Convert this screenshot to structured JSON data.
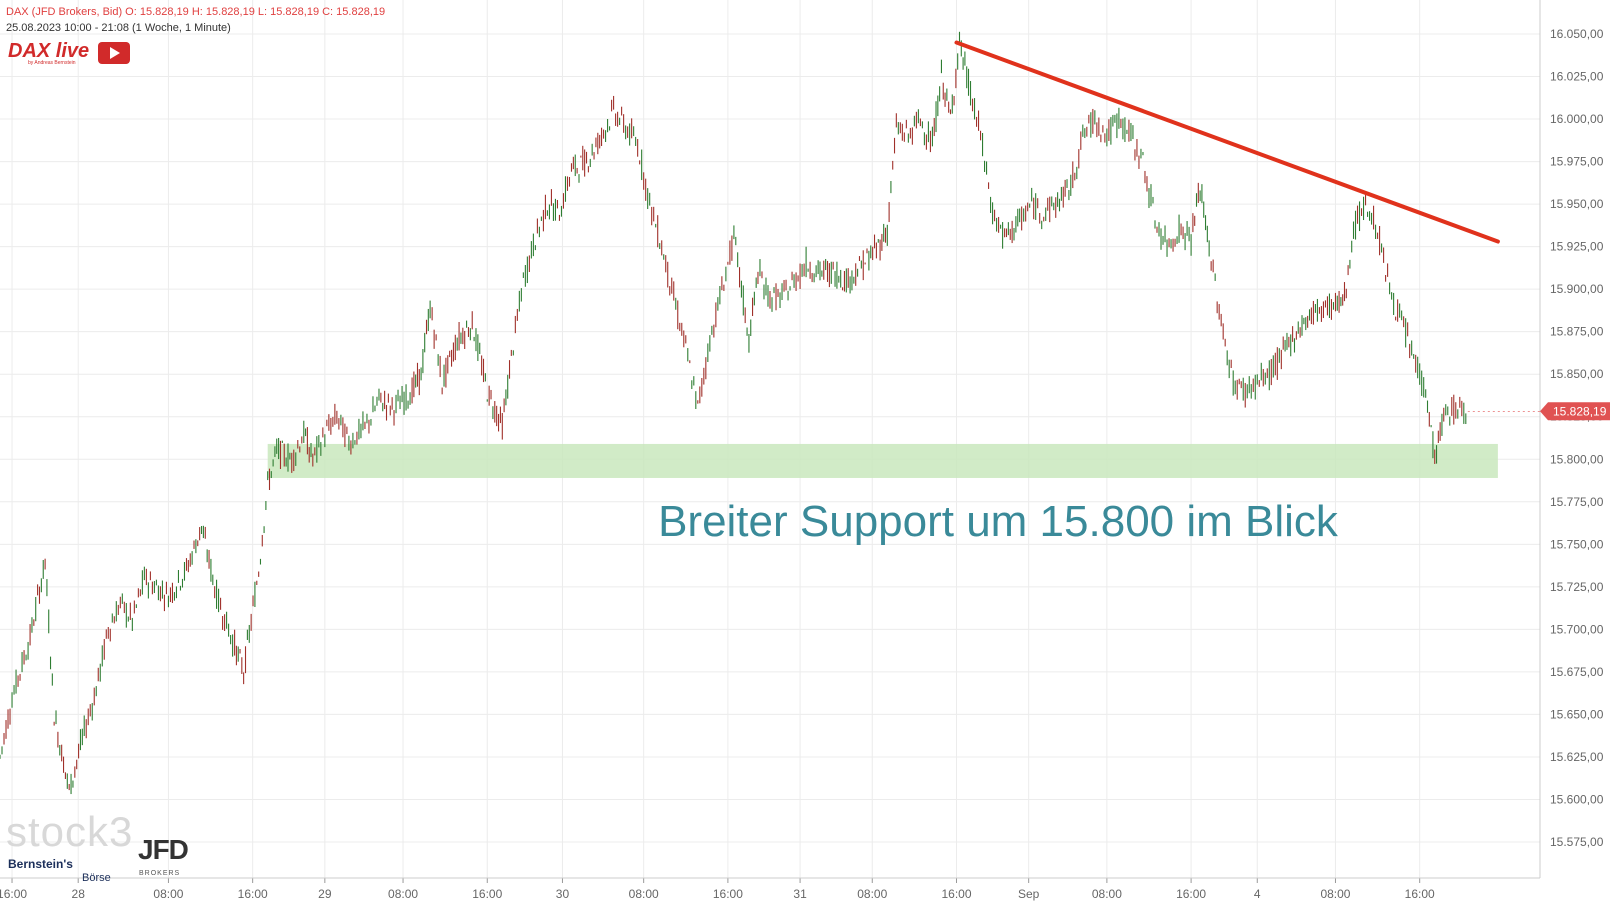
{
  "header": {
    "line1": "DAX (JFD Brokers, Bid)  O: 15.828,19  H: 15.828,19  L: 15.828,19  C: 15.828,19",
    "line2": "25.08.2023 10:00 - 21:08   (1 Woche, 1 Minute)"
  },
  "logos": {
    "dax_live": "DAX live",
    "dax_sub": "by Andreas Bernstein",
    "stock3": "stock3",
    "bernsteins": "Bernstein's",
    "boerse": "Börse",
    "jfd": "JFD",
    "jfd_sub": "BROKERS"
  },
  "chart_data": {
    "type": "line",
    "title": "",
    "ylim": [
      15565,
      16060
    ],
    "y_ticks": [
      "16.050,00",
      "16.025,00",
      "16.000,00",
      "15.975,00",
      "15.950,00",
      "15.925,00",
      "15.900,00",
      "15.875,00",
      "15.850,00",
      "15.825,00",
      "15.800,00",
      "15.775,00",
      "15.750,00",
      "15.725,00",
      "15.700,00",
      "15.675,00",
      "15.650,00",
      "15.625,00",
      "15.600,00",
      "15.575,00"
    ],
    "y_tick_values": [
      16050,
      16025,
      16000,
      15975,
      15950,
      15925,
      15900,
      15875,
      15850,
      15825,
      15800,
      15775,
      15750,
      15725,
      15700,
      15675,
      15650,
      15625,
      15600,
      15575
    ],
    "x_ticks": [
      {
        "label": "16:00",
        "t": 0.2
      },
      {
        "label": "28",
        "t": 1.3
      },
      {
        "label": "08:00",
        "t": 2.8
      },
      {
        "label": "16:00",
        "t": 4.2
      },
      {
        "label": "29",
        "t": 5.4
      },
      {
        "label": "08:00",
        "t": 6.7
      },
      {
        "label": "16:00",
        "t": 8.1
      },
      {
        "label": "30",
        "t": 9.35
      },
      {
        "label": "08:00",
        "t": 10.7
      },
      {
        "label": "16:00",
        "t": 12.1
      },
      {
        "label": "31",
        "t": 13.3
      },
      {
        "label": "08:00",
        "t": 14.5
      },
      {
        "label": "16:00",
        "t": 15.9
      },
      {
        "label": "Sep",
        "t": 17.1
      },
      {
        "label": "08:00",
        "t": 18.4
      },
      {
        "label": "16:00",
        "t": 19.8
      },
      {
        "label": "4",
        "t": 20.9
      },
      {
        "label": "08:00",
        "t": 22.2
      },
      {
        "label": "16:00",
        "t": 23.6
      }
    ],
    "series": [
      {
        "values": [
          [
            0,
            15625
          ],
          [
            0.2,
            15660
          ],
          [
            0.5,
            15695
          ],
          [
            0.75,
            15740
          ],
          [
            0.9,
            15650
          ],
          [
            1.15,
            15605
          ],
          [
            1.4,
            15640
          ],
          [
            1.6,
            15665
          ],
          [
            1.8,
            15700
          ],
          [
            2.0,
            15715
          ],
          [
            2.2,
            15705
          ],
          [
            2.4,
            15730
          ],
          [
            2.8,
            15720
          ],
          [
            3.1,
            15735
          ],
          [
            3.35,
            15760
          ],
          [
            3.6,
            15720
          ],
          [
            3.9,
            15690
          ],
          [
            4.05,
            15675
          ],
          [
            4.3,
            15735
          ],
          [
            4.45,
            15785
          ],
          [
            4.6,
            15805
          ],
          [
            4.85,
            15800
          ],
          [
            5.05,
            15815
          ],
          [
            5.2,
            15800
          ],
          [
            5.4,
            15815
          ],
          [
            5.6,
            15825
          ],
          [
            5.8,
            15810
          ],
          [
            6.1,
            15820
          ],
          [
            6.3,
            15835
          ],
          [
            6.55,
            15830
          ],
          [
            6.85,
            15840
          ],
          [
            7.0,
            15850
          ],
          [
            7.15,
            15890
          ],
          [
            7.35,
            15845
          ],
          [
            7.6,
            15870
          ],
          [
            7.85,
            15880
          ],
          [
            8.1,
            15840
          ],
          [
            8.35,
            15820
          ],
          [
            8.5,
            15860
          ],
          [
            8.7,
            15905
          ],
          [
            8.9,
            15930
          ],
          [
            9.1,
            15950
          ],
          [
            9.3,
            15945
          ],
          [
            9.5,
            15970
          ],
          [
            9.75,
            15975
          ],
          [
            10.0,
            15990
          ],
          [
            10.2,
            16005
          ],
          [
            10.4,
            15995
          ],
          [
            10.6,
            15985
          ],
          [
            10.8,
            15950
          ],
          [
            11.0,
            15925
          ],
          [
            11.2,
            15895
          ],
          [
            11.4,
            15865
          ],
          [
            11.6,
            15830
          ],
          [
            11.8,
            15870
          ],
          [
            12.0,
            15900
          ],
          [
            12.2,
            15930
          ],
          [
            12.45,
            15870
          ],
          [
            12.6,
            15910
          ],
          [
            12.8,
            15895
          ],
          [
            13.0,
            15895
          ],
          [
            13.2,
            15905
          ],
          [
            13.4,
            15915
          ],
          [
            13.6,
            15910
          ],
          [
            13.85,
            15910
          ],
          [
            14.1,
            15905
          ],
          [
            14.35,
            15915
          ],
          [
            14.6,
            15925
          ],
          [
            14.75,
            15935
          ],
          [
            14.9,
            15995
          ],
          [
            15.1,
            15990
          ],
          [
            15.3,
            16000
          ],
          [
            15.5,
            15985
          ],
          [
            15.65,
            16025
          ],
          [
            15.8,
            16000
          ],
          [
            15.95,
            16045
          ],
          [
            16.1,
            16020
          ],
          [
            16.3,
            15990
          ],
          [
            16.5,
            15945
          ],
          [
            16.7,
            15930
          ],
          [
            16.95,
            15940
          ],
          [
            17.15,
            15950
          ],
          [
            17.35,
            15945
          ],
          [
            17.55,
            15950
          ],
          [
            17.8,
            15960
          ],
          [
            18.0,
            15990
          ],
          [
            18.2,
            16000
          ],
          [
            18.4,
            15990
          ],
          [
            18.6,
            16000
          ],
          [
            18.8,
            15990
          ],
          [
            19.0,
            15975
          ],
          [
            19.2,
            15940
          ],
          [
            19.4,
            15925
          ],
          [
            19.6,
            15935
          ],
          [
            19.8,
            15930
          ],
          [
            19.95,
            15960
          ],
          [
            20.1,
            15925
          ],
          [
            20.3,
            15880
          ],
          [
            20.5,
            15845
          ],
          [
            20.7,
            15840
          ],
          [
            20.9,
            15845
          ],
          [
            21.1,
            15850
          ],
          [
            21.3,
            15860
          ],
          [
            21.55,
            15875
          ],
          [
            21.8,
            15885
          ],
          [
            22.0,
            15890
          ],
          [
            22.2,
            15890
          ],
          [
            22.35,
            15895
          ],
          [
            22.5,
            15935
          ],
          [
            22.7,
            15950
          ],
          [
            22.9,
            15935
          ],
          [
            23.1,
            15900
          ],
          [
            23.3,
            15880
          ],
          [
            23.5,
            15860
          ],
          [
            23.7,
            15840
          ],
          [
            23.85,
            15800
          ],
          [
            24.0,
            15825
          ],
          [
            24.2,
            15830
          ],
          [
            24.4,
            15828
          ]
        ]
      }
    ],
    "trendline": {
      "from": [
        15.9,
        16045
      ],
      "to": [
        24.9,
        15928
      ]
    },
    "support_zone": {
      "y_low": 15789,
      "y_high": 15809,
      "x_start": 4.45,
      "x_end": 24.9
    },
    "annotation": "Breiter Support um 15.800 im Blick",
    "last_price": {
      "label": "15.828,19",
      "value": 15828.19
    },
    "colors": {
      "candle": "#a0302a",
      "candle_up": "#2e7d32",
      "trendline": "#e0321c",
      "support_fill": "#c9e7bd",
      "annotation": "#3a8a99",
      "price_tag": "#e05252",
      "grid": "#ececec",
      "axis_text": "#666666"
    }
  }
}
